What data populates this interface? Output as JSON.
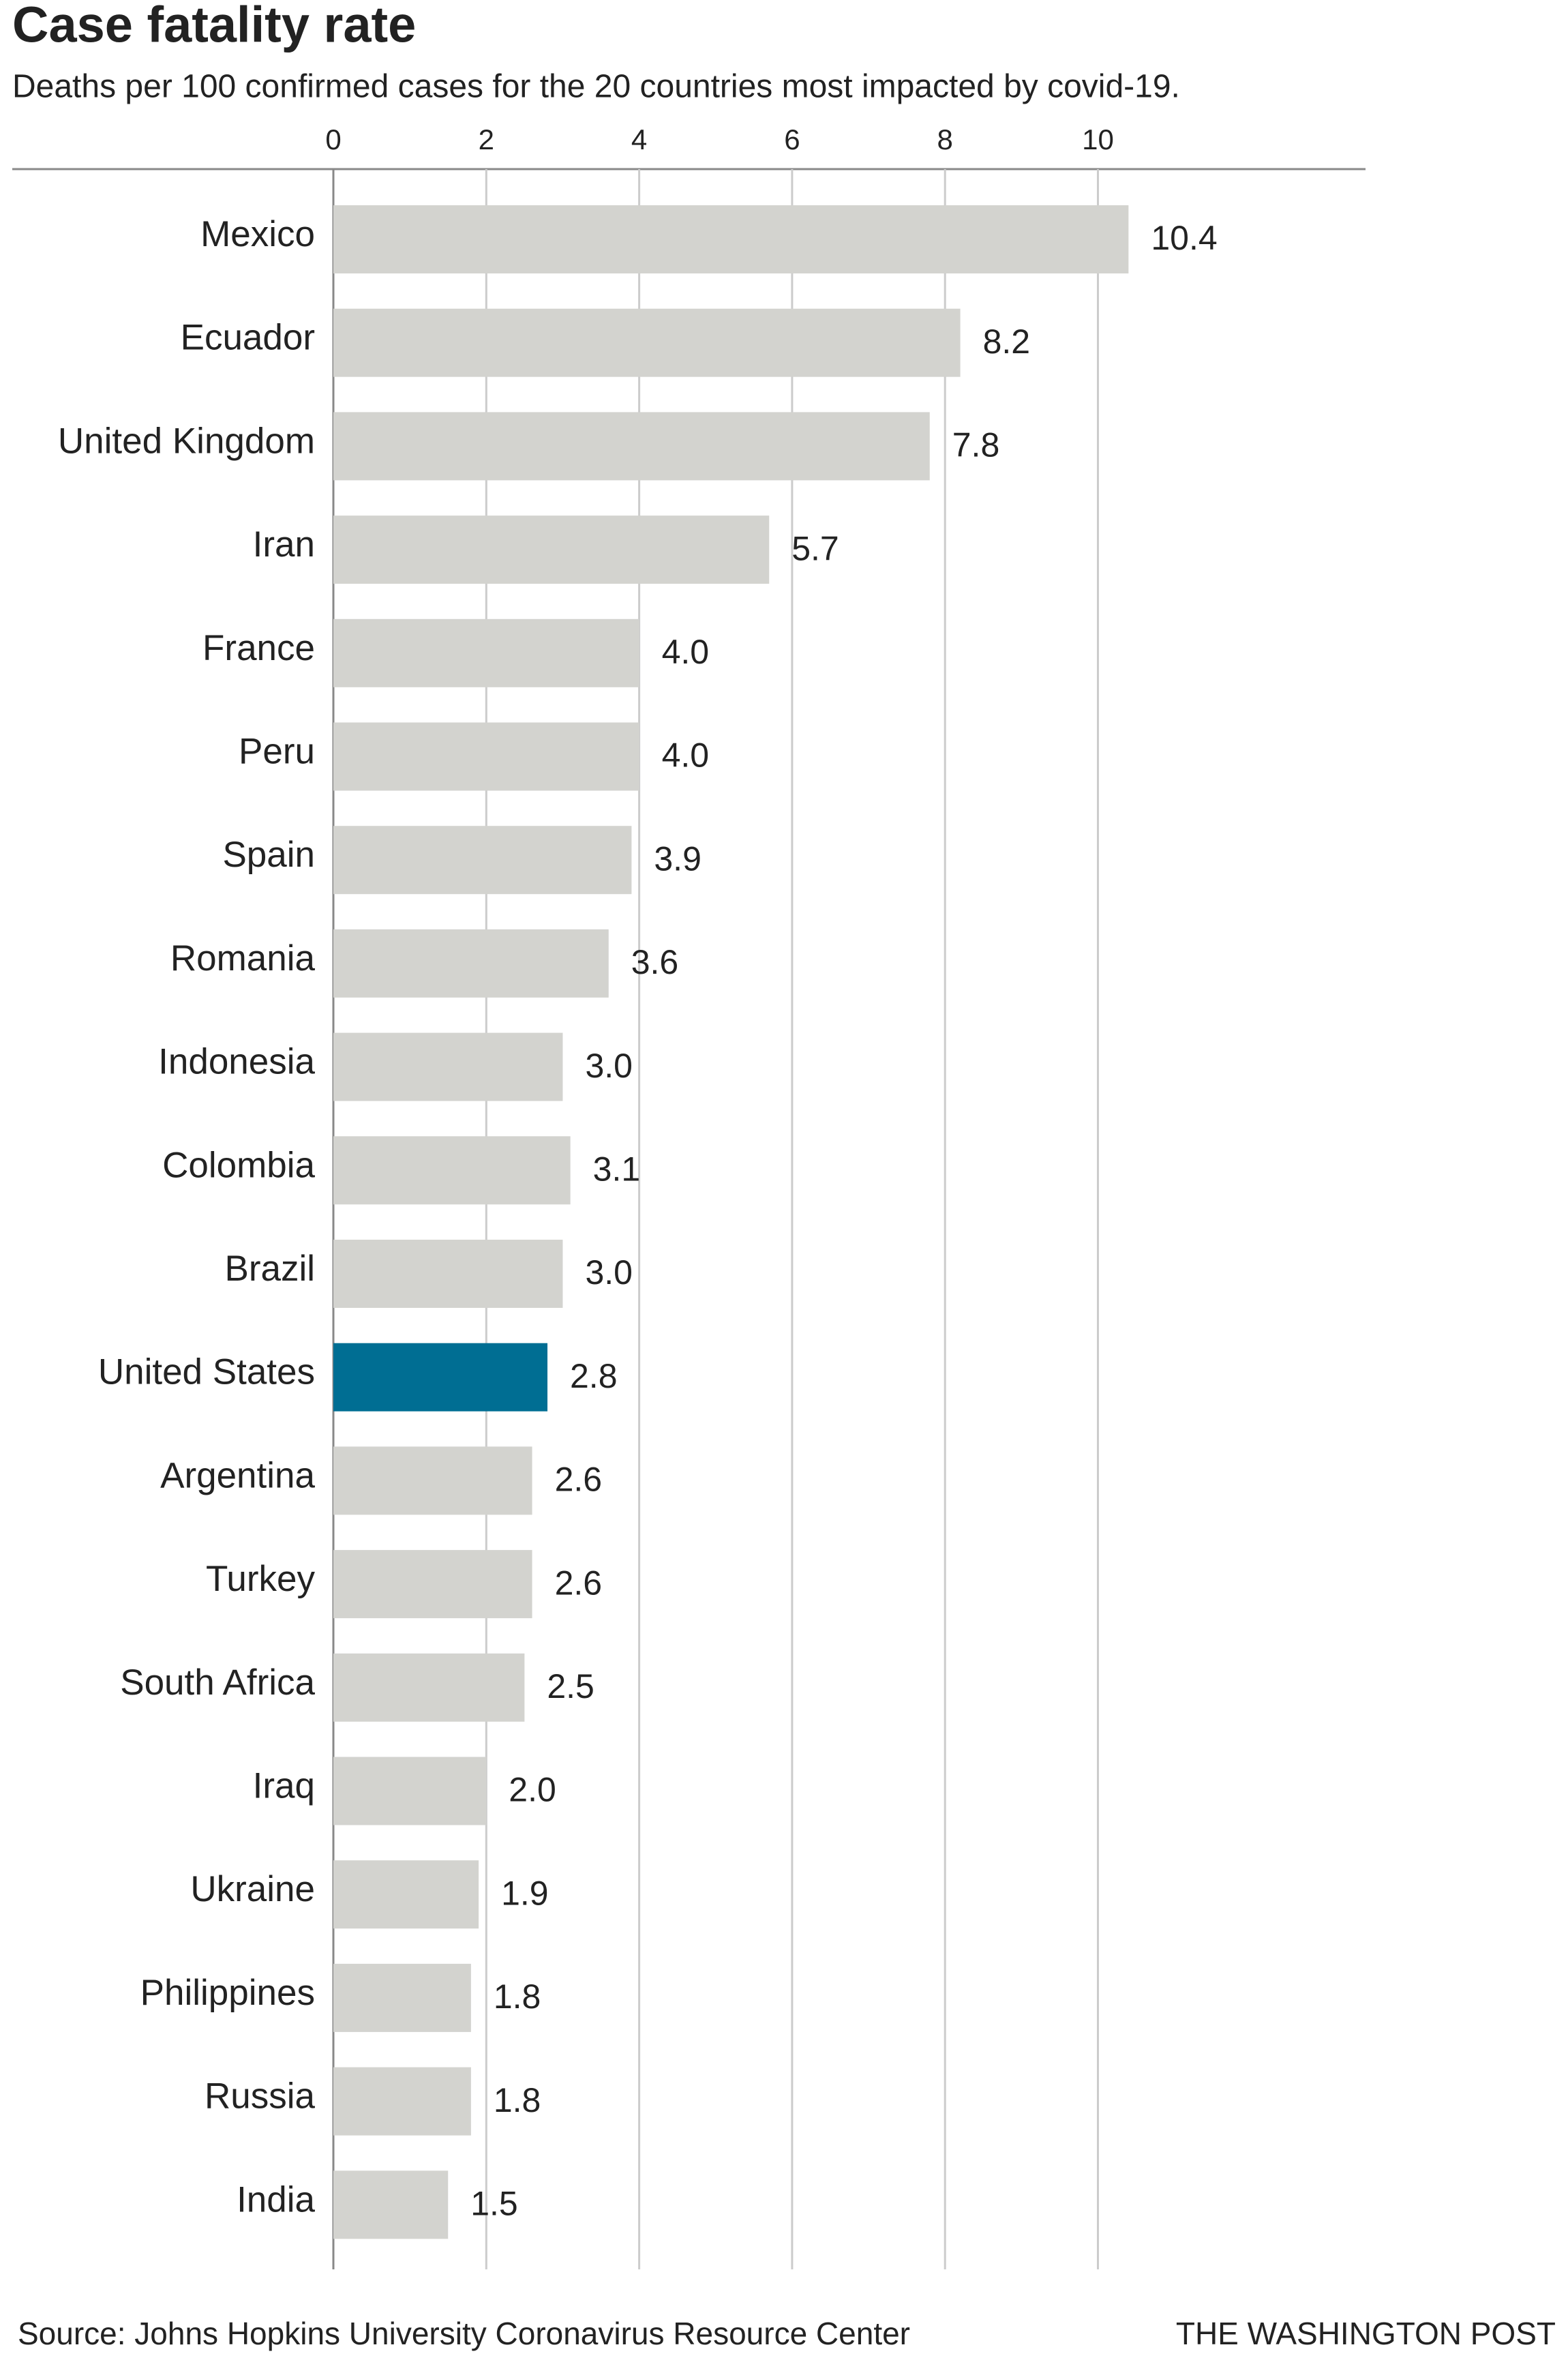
{
  "chart_data": {
    "type": "bar",
    "orientation": "horizontal",
    "title": "Case fatality rate",
    "subtitle": "Deaths per 100 confirmed cases for the 20 countries most impacted by covid-19.",
    "categories": [
      "Mexico",
      "Ecuador",
      "United Kingdom",
      "Iran",
      "France",
      "Peru",
      "Spain",
      "Romania",
      "Indonesia",
      "Colombia",
      "Brazil",
      "United States",
      "Argentina",
      "Turkey",
      "South Africa",
      "Iraq",
      "Ukraine",
      "Philippines",
      "Russia",
      "India"
    ],
    "values": [
      10.4,
      8.2,
      7.8,
      5.7,
      4.0,
      4.0,
      3.9,
      3.6,
      3.0,
      3.1,
      3.0,
      2.8,
      2.6,
      2.6,
      2.5,
      2.0,
      1.9,
      1.8,
      1.8,
      1.5
    ],
    "value_labels": [
      "10.4",
      "8.2",
      "7.8",
      "5.7",
      "4.0",
      "4.0",
      "3.9",
      "3.6",
      "3.0",
      "3.1",
      "3.0",
      "2.8",
      "2.6",
      "2.6",
      "2.5",
      "2.0",
      "1.9",
      "1.8",
      "1.8",
      "1.5"
    ],
    "colors": [
      "#d3d3cf",
      "#d3d3cf",
      "#d3d3cf",
      "#d3d3cf",
      "#d3d3cf",
      "#d3d3cf",
      "#d3d3cf",
      "#d3d3cf",
      "#d3d3cf",
      "#d3d3cf",
      "#d3d3cf",
      "#006e93",
      "#d3d3cf",
      "#d3d3cf",
      "#d3d3cf",
      "#d3d3cf",
      "#d3d3cf",
      "#d3d3cf",
      "#d3d3cf",
      "#d3d3cf"
    ],
    "xlim": [
      0,
      13.5
    ],
    "xticks": [
      0,
      2,
      4,
      6,
      8,
      10
    ],
    "grid": true,
    "source": "Source: Johns Hopkins University Coronavirus Resource Center",
    "credit": "THE WASHINGTON POST"
  }
}
